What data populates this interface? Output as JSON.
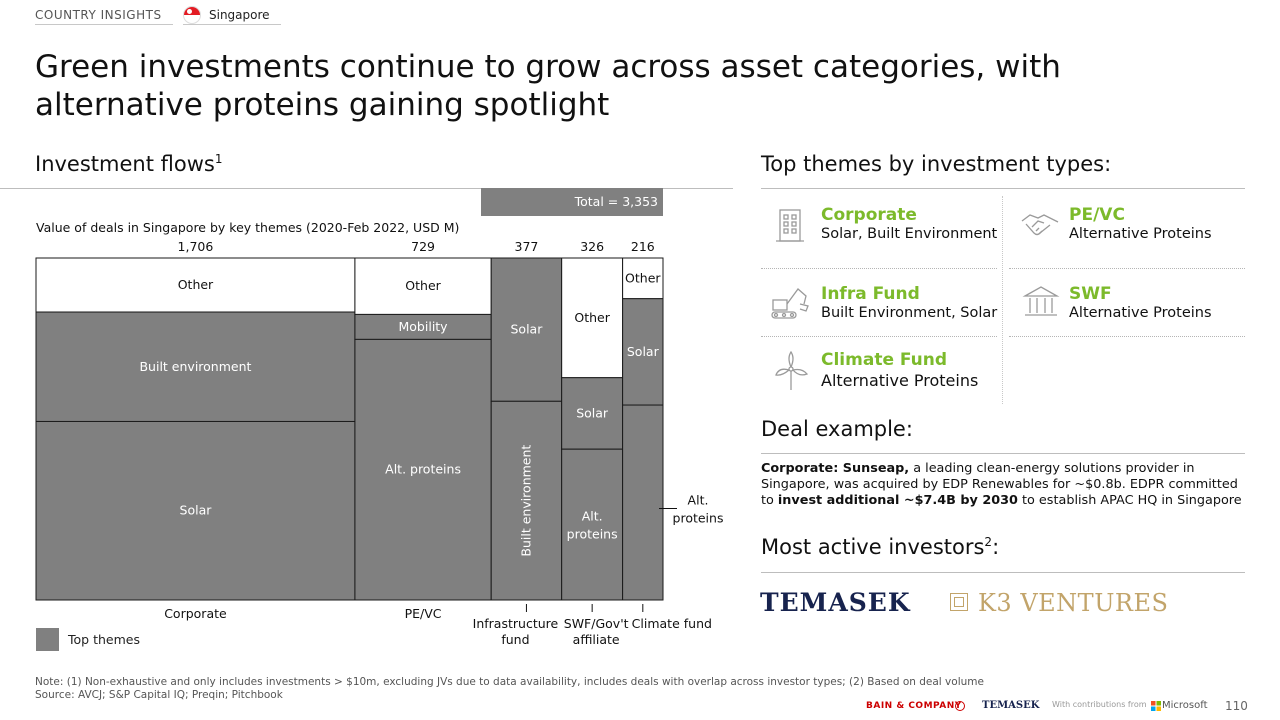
{
  "header": {
    "section": "COUNTRY INSIGHTS",
    "country": "Singapore"
  },
  "title": "Green investments continue to grow across asset categories, with alternative proteins gaining spotlight",
  "left": {
    "section_title": "Investment flows",
    "section_sup": "1",
    "total_label": "Total = 3,353",
    "subtitle": "Value of deals in Singapore by key themes (2020-Feb 2022, USD M)",
    "legend_label": "Top themes"
  },
  "chart_data": {
    "type": "marimekko",
    "title": "Value of deals in Singapore by key themes (2020-Feb 2022, USD M)",
    "total": 3353,
    "columns": [
      {
        "name": "Corporate",
        "total": 1706,
        "total_label": "1,706",
        "segments": [
          {
            "label": "Other",
            "share": 0.158,
            "top_theme": false
          },
          {
            "label": "Built environment",
            "share": 0.32,
            "top_theme": true
          },
          {
            "label": "Solar",
            "share": 0.522,
            "top_theme": true
          }
        ]
      },
      {
        "name": "PE/VC",
        "total": 729,
        "total_label": "729",
        "segments": [
          {
            "label": "Other",
            "share": 0.165,
            "top_theme": false
          },
          {
            "label": "Mobility",
            "share": 0.073,
            "top_theme": true
          },
          {
            "label": "Alt. proteins",
            "share": 0.762,
            "top_theme": true
          }
        ]
      },
      {
        "name": "Infrastructure fund",
        "total": 377,
        "total_label": "377",
        "segments": [
          {
            "label": "Solar",
            "share": 0.419,
            "top_theme": true
          },
          {
            "label": "Built environment",
            "share": 0.581,
            "top_theme": true
          }
        ]
      },
      {
        "name": "SWF/Gov't affiliate",
        "total": 326,
        "total_label": "326",
        "segments": [
          {
            "label": "Other",
            "share": 0.35,
            "top_theme": false
          },
          {
            "label": "Solar",
            "share": 0.209,
            "top_theme": true
          },
          {
            "label": "Alt. proteins",
            "share": 0.441,
            "top_theme": true
          }
        ]
      },
      {
        "name": "Climate fund",
        "total": 216,
        "total_label": "216",
        "segments": [
          {
            "label": "Other",
            "share": 0.119,
            "top_theme": false
          },
          {
            "label": "Solar",
            "share": 0.311,
            "top_theme": true
          },
          {
            "label": "Alt. proteins",
            "share": 0.57,
            "top_theme": true
          }
        ]
      }
    ],
    "colors": {
      "top_theme": "#808080",
      "other": "#ffffff"
    }
  },
  "right": {
    "themes_title": "Top themes by investment types:",
    "themes": [
      {
        "name": "Corporate",
        "desc": "Solar, Built Environment",
        "icon": "building-icon"
      },
      {
        "name": "PE/VC",
        "desc": "Alternative Proteins",
        "icon": "handshake-icon"
      },
      {
        "name": "Infra Fund",
        "desc": "Built Environment, Solar",
        "icon": "excavator-icon"
      },
      {
        "name": "SWF",
        "desc": "Alternative Proteins",
        "icon": "bank-icon"
      },
      {
        "name": "Climate Fund",
        "desc": "Alternative Proteins",
        "icon": "windmill-icon"
      }
    ],
    "deal_title": "Deal example:",
    "deal": {
      "lead": "Corporate: Sunseap,",
      "part1": " a leading clean-energy solutions provider in Singapore, was acquired by EDP Renewables for ~$0.8b. EDPR committed to ",
      "bold2": "invest additional ~$7.4B by 2030",
      "part2": " to establish APAC HQ in Singapore"
    },
    "investors_title": "Most active investors",
    "investors_sup": "2",
    "investors_suffix": ":",
    "investors": [
      "TEMASEK",
      "K3 VENTURES"
    ]
  },
  "footer": {
    "note": "Note: (1) Non-exhaustive and only includes investments > $10m, excluding JVs due to data availability, includes deals with overlap across investor types; (2) Based on deal volume",
    "source": "Source: AVCJ; S&P Capital IQ; Preqin; Pitchbook",
    "bain": "BAIN & COMPANY",
    "temasek": "TEMASEK",
    "contrib": "With contributions from",
    "microsoft": "Microsoft",
    "page": "110"
  },
  "accent_color": "#7cba2b"
}
